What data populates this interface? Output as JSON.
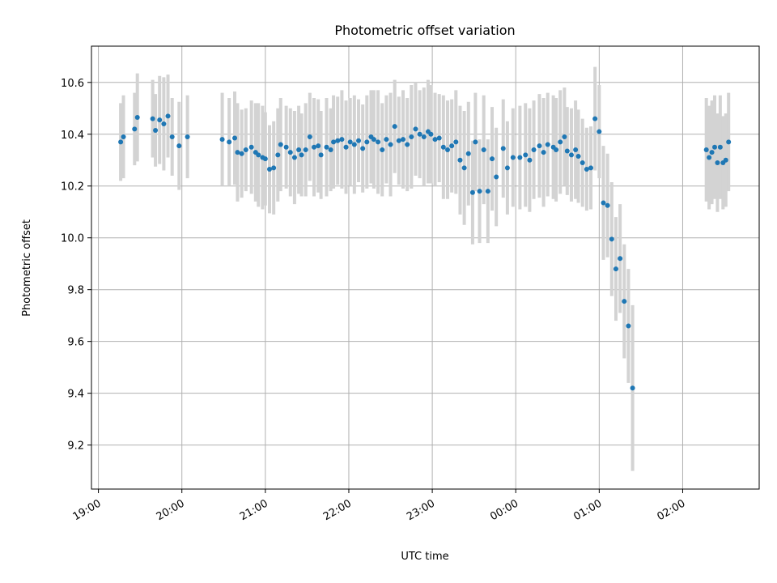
{
  "chart_data": {
    "type": "scatter",
    "title": "Photometric offset variation",
    "xlabel": "UTC time",
    "ylabel": "Photometric offset",
    "x_ticks": [
      "19:00",
      "20:00",
      "21:00",
      "22:00",
      "23:00",
      "00:00",
      "01:00",
      "02:00"
    ],
    "y_ticks": [
      "9.2",
      "9.4",
      "9.6",
      "9.8",
      "10.0",
      "10.2",
      "10.4",
      "10.6"
    ],
    "xlim": [
      "18:55",
      "02:55"
    ],
    "ylim": [
      9.03,
      10.74
    ],
    "grid": true,
    "point_color": "#1f77b4",
    "errorbar_color": "#d3d3d3",
    "series": [
      {
        "x": [
          "19:16",
          "19:18",
          "19:26",
          "19:28",
          "19:39",
          "19:41",
          "19:44",
          "19:47",
          "19:50",
          "19:53",
          "19:58",
          "20:04",
          "20:29",
          "20:34",
          "20:38",
          "20:40",
          "20:43",
          "20:46",
          "20:50",
          "20:53",
          "20:55",
          "20:58",
          "21:00",
          "21:03",
          "21:06",
          "21:09",
          "21:11",
          "21:15",
          "21:18",
          "21:21",
          "21:24",
          "21:26",
          "21:29",
          "21:32",
          "21:35",
          "21:38",
          "21:40",
          "21:44",
          "21:47",
          "21:49",
          "21:52",
          "21:55",
          "21:58",
          "22:01",
          "22:04",
          "22:07",
          "22:10",
          "22:13",
          "22:16",
          "22:18",
          "22:21",
          "22:24",
          "22:27",
          "22:30",
          "22:33",
          "22:36",
          "22:39",
          "22:42",
          "22:45",
          "22:48",
          "22:51",
          "22:54",
          "22:57",
          "22:59",
          "23:02",
          "23:05",
          "23:08",
          "23:11",
          "23:14",
          "23:17",
          "23:20",
          "23:23",
          "23:26",
          "23:29",
          "23:31",
          "23:34",
          "23:37",
          "23:40",
          "23:43",
          "23:46",
          "23:51",
          "23:54",
          "23:58",
          "00:03",
          "00:07",
          "00:10",
          "00:13",
          "00:17",
          "00:20",
          "00:23",
          "00:27",
          "00:29",
          "00:32",
          "00:35",
          "00:37",
          "00:40",
          "00:43",
          "00:45",
          "00:48",
          "00:51",
          "00:54",
          "00:57",
          "01:00",
          "01:03",
          "01:06",
          "01:09",
          "01:12",
          "01:15",
          "01:18",
          "01:21",
          "01:24",
          "02:17",
          "02:19",
          "02:21",
          "02:23",
          "02:25",
          "02:27",
          "02:29",
          "02:31",
          "02:33"
        ],
        "y": [
          10.37,
          10.39,
          10.42,
          10.465,
          10.46,
          10.415,
          10.455,
          10.44,
          10.47,
          10.39,
          10.355,
          10.39,
          10.38,
          10.37,
          10.385,
          10.33,
          10.325,
          10.34,
          10.35,
          10.33,
          10.32,
          10.31,
          10.305,
          10.265,
          10.27,
          10.32,
          10.36,
          10.35,
          10.33,
          10.31,
          10.34,
          10.32,
          10.34,
          10.39,
          10.35,
          10.355,
          10.32,
          10.35,
          10.34,
          10.37,
          10.375,
          10.38,
          10.35,
          10.37,
          10.36,
          10.375,
          10.345,
          10.37,
          10.39,
          10.38,
          10.37,
          10.34,
          10.38,
          10.36,
          10.43,
          10.375,
          10.38,
          10.36,
          10.39,
          10.42,
          10.4,
          10.39,
          10.41,
          10.4,
          10.38,
          10.385,
          10.35,
          10.34,
          10.355,
          10.37,
          10.3,
          10.27,
          10.325,
          10.175,
          10.37,
          10.18,
          10.34,
          10.18,
          10.305,
          10.235,
          10.345,
          10.27,
          10.31,
          10.31,
          10.32,
          10.3,
          10.34,
          10.355,
          10.33,
          10.36,
          10.35,
          10.34,
          10.37,
          10.39,
          10.335,
          10.32,
          10.34,
          10.315,
          10.29,
          10.265,
          10.27,
          10.46,
          10.41,
          10.135,
          10.125,
          9.995,
          9.88,
          9.92,
          9.755,
          9.66,
          9.42,
          10.34,
          10.31,
          10.33,
          10.35,
          10.29,
          10.35,
          10.29,
          10.3,
          10.37
        ],
        "yerr": [
          0.15,
          0.16,
          0.14,
          0.17,
          0.15,
          0.14,
          0.17,
          0.18,
          0.16,
          0.15,
          0.17,
          0.16,
          0.18,
          0.17,
          0.18,
          0.19,
          0.17,
          0.16,
          0.18,
          0.19,
          0.2,
          0.2,
          0.18,
          0.17,
          0.18,
          0.18,
          0.18,
          0.16,
          0.17,
          0.18,
          0.17,
          0.16,
          0.18,
          0.17,
          0.19,
          0.18,
          0.17,
          0.19,
          0.16,
          0.18,
          0.17,
          0.19,
          0.18,
          0.17,
          0.19,
          0.16,
          0.17,
          0.18,
          0.18,
          0.19,
          0.2,
          0.18,
          0.17,
          0.2,
          0.18,
          0.17,
          0.19,
          0.18,
          0.2,
          0.18,
          0.17,
          0.19,
          0.2,
          0.19,
          0.18,
          0.17,
          0.2,
          0.19,
          0.18,
          0.2,
          0.21,
          0.22,
          0.2,
          0.2,
          0.19,
          0.2,
          0.21,
          0.2,
          0.2,
          0.19,
          0.19,
          0.18,
          0.19,
          0.2,
          0.2,
          0.2,
          0.19,
          0.2,
          0.21,
          0.2,
          0.2,
          0.2,
          0.2,
          0.19,
          0.17,
          0.18,
          0.19,
          0.18,
          0.17,
          0.16,
          0.16,
          0.2,
          0.18,
          0.22,
          0.2,
          0.22,
          0.2,
          0.21,
          0.22,
          0.22,
          0.32,
          0.2,
          0.2,
          0.2,
          0.2,
          0.19,
          0.2,
          0.18,
          0.18,
          0.19
        ]
      }
    ]
  }
}
